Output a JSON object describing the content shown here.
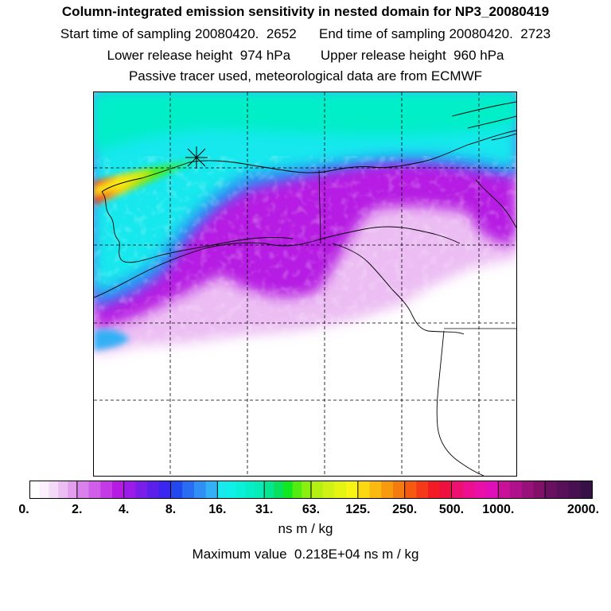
{
  "header": {
    "title": "Column-integrated emission sensitivity in nested domain for NP3_20080419",
    "line2": "Start time of sampling 20080420.  2652      End time of sampling 20080420.  2723",
    "line3": "Lower release height  974 hPa        Upper release height  960 hPa",
    "line4": "Passive tracer used, meteorological data are from ECMWF"
  },
  "colorbar": {
    "labels": [
      "0.",
      "2.",
      "4.",
      "8.",
      "16.",
      "31.",
      "63.",
      "125.",
      "250.",
      "500.",
      "1000.",
      "2000."
    ],
    "bands": [
      [
        "#ffffff",
        "#fbeefd",
        "#f4d9f8",
        "#ecbdf3",
        "#e39fee"
      ],
      [
        "#d980ec",
        "#cf5ee9",
        "#c43be6",
        "#b61ae3"
      ],
      [
        "#9b1ce8",
        "#7b1eea",
        "#5b20ec",
        "#3a26ee"
      ],
      [
        "#2448f0",
        "#2a6cf2",
        "#2f8ff4",
        "#33b0f6"
      ],
      [
        "#19e8ee",
        "#0ef0e8",
        "#08f0d8",
        "#06eec8",
        "#05ecb8"
      ],
      [
        "#06e690",
        "#08e060",
        "#10e820",
        "#52ec10",
        "#8aee10"
      ],
      [
        "#b4f012",
        "#cff214",
        "#e6f414",
        "#f8f414"
      ],
      [
        "#fcd810",
        "#f9b910",
        "#f79a10",
        "#f57a10"
      ],
      [
        "#f55a10",
        "#f43a18",
        "#f31c26",
        "#ef1040"
      ],
      [
        "#ee1070",
        "#ec1090",
        "#e810a8",
        "#e010b8"
      ],
      [
        "#c81098",
        "#b0108a",
        "#98107a",
        "#80106a"
      ],
      [
        "#6a1060",
        "#581058",
        "#481050",
        "#381048"
      ]
    ],
    "units": "ns m / kg"
  },
  "footer": {
    "max_value": "Maximum value  0.218E+04 ns m / kg"
  },
  "map": {
    "release_marker": "release-site-star"
  }
}
